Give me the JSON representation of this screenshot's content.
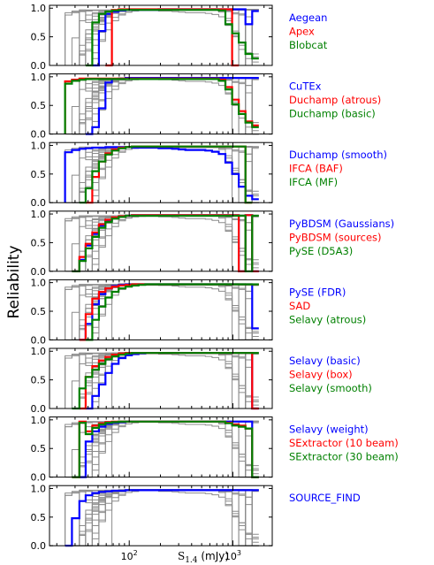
{
  "chart_data": {
    "type": "line",
    "layout": "8 vertically stacked step-line panels sharing a log-scaled x axis",
    "ylabel": "Reliability",
    "xlabel": "S",
    "xlabel_subscript": "1.4",
    "xlabel_unit": " (mJy)",
    "xscale": "log",
    "xlim": [
      17,
      2400
    ],
    "ylim": [
      0.0,
      1.05
    ],
    "yticks": [
      "0.0",
      "0.5",
      "1.0"
    ],
    "xticks": [
      {
        "value": 100,
        "label": "10",
        "exp": "2"
      },
      {
        "value": 1000,
        "label": "10",
        "exp": "3"
      }
    ],
    "background_curves": {
      "color": "#8c8c8c",
      "description": "grey step curves for all other source finders repeated in every panel"
    },
    "bin_edges": [
      20,
      24,
      28,
      33,
      38,
      44,
      51,
      59,
      68,
      79,
      92,
      106,
      123,
      143,
      166,
      192,
      223,
      259,
      300,
      348,
      403,
      468,
      543,
      630,
      731,
      848,
      984,
      1141,
      1324,
      1536,
      1782
    ],
    "panels": [
      {
        "series": [
          {
            "name": "Aegean",
            "color": "#0000ff",
            "values": [
              null,
              null,
              null,
              null,
              null,
              0.0,
              0.6,
              0.9,
              0.94,
              0.96,
              0.97,
              0.97,
              0.97,
              0.97,
              0.97,
              0.98,
              0.98,
              0.98,
              0.98,
              0.98,
              0.98,
              0.98,
              0.98,
              0.98,
              0.98,
              0.98,
              0.98,
              0.98,
              0.72,
              0.95
            ]
          },
          {
            "name": "Apex",
            "color": "#ff0000",
            "values": [
              null,
              null,
              null,
              null,
              null,
              null,
              null,
              0.0,
              0.97,
              0.98,
              0.98,
              0.98,
              0.98,
              0.98,
              0.98,
              0.98,
              0.98,
              0.98,
              0.98,
              0.98,
              0.98,
              0.98,
              0.98,
              0.98,
              0.98,
              0.98,
              0.0,
              null,
              null,
              null
            ]
          },
          {
            "name": "Blobcat",
            "color": "#008000",
            "values": [
              null,
              null,
              null,
              null,
              0.0,
              0.75,
              0.9,
              0.94,
              0.96,
              0.97,
              0.97,
              0.97,
              0.97,
              0.97,
              0.97,
              0.97,
              0.97,
              0.97,
              0.97,
              0.97,
              0.97,
              0.97,
              0.97,
              0.97,
              0.96,
              0.72,
              0.56,
              0.4,
              0.2,
              0.12
            ]
          }
        ]
      },
      {
        "series": [
          {
            "name": "CuTEx",
            "color": "#0000ff",
            "values": [
              null,
              null,
              null,
              null,
              0.0,
              0.12,
              0.45,
              0.9,
              0.96,
              0.97,
              0.98,
              0.98,
              0.98,
              0.98,
              0.98,
              0.98,
              0.98,
              0.98,
              0.98,
              0.98,
              0.98,
              0.98,
              0.98,
              0.98,
              0.98,
              0.98,
              0.98,
              0.98,
              0.98,
              0.98
            ]
          },
          {
            "name": "Duchamp (atrous)",
            "color": "#ff0000",
            "values": [
              null,
              0.92,
              0.95,
              0.97,
              0.97,
              0.97,
              0.97,
              0.97,
              0.97,
              0.97,
              0.97,
              0.97,
              0.97,
              0.97,
              0.97,
              0.97,
              0.97,
              0.97,
              0.97,
              0.97,
              0.97,
              0.97,
              0.97,
              0.97,
              0.95,
              0.82,
              0.6,
              0.4,
              0.22,
              0.15
            ]
          },
          {
            "name": "Duchamp (basic)",
            "color": "#008000",
            "values": [
              null,
              0.88,
              0.93,
              0.95,
              0.96,
              0.96,
              0.96,
              0.96,
              0.96,
              0.96,
              0.96,
              0.96,
              0.96,
              0.96,
              0.96,
              0.96,
              0.96,
              0.96,
              0.96,
              0.96,
              0.96,
              0.96,
              0.96,
              0.96,
              0.93,
              0.78,
              0.52,
              0.35,
              0.2,
              0.12
            ]
          }
        ]
      },
      {
        "series": [
          {
            "name": "Duchamp (smooth)",
            "color": "#0000ff",
            "values": [
              null,
              0.88,
              0.92,
              0.94,
              0.95,
              0.96,
              0.96,
              0.97,
              0.97,
              0.97,
              0.97,
              0.96,
              0.96,
              0.96,
              0.96,
              0.95,
              0.95,
              0.94,
              0.93,
              0.92,
              0.92,
              0.92,
              0.91,
              0.89,
              0.85,
              0.7,
              0.5,
              0.28,
              0.12,
              0.06
            ]
          },
          {
            "name": "IFCA (BAF)",
            "color": "#ff0000",
            "values": [
              null,
              null,
              null,
              null,
              0.0,
              0.45,
              0.72,
              0.86,
              0.93,
              0.96,
              0.97,
              0.98,
              0.98,
              0.98,
              0.98,
              0.98,
              0.98,
              0.98,
              0.98,
              0.98,
              0.98,
              0.98,
              0.98,
              0.98,
              0.98,
              0.98,
              0.98,
              0.98,
              0.0,
              null
            ]
          },
          {
            "name": "IFCA (MF)",
            "color": "#008000",
            "values": [
              null,
              null,
              null,
              0.0,
              0.25,
              0.55,
              0.72,
              0.84,
              0.91,
              0.95,
              0.97,
              0.98,
              0.98,
              0.98,
              0.98,
              0.98,
              0.98,
              0.98,
              0.98,
              0.98,
              0.98,
              0.98,
              0.98,
              0.98,
              0.98,
              0.98,
              0.98,
              0.98,
              0.0,
              null
            ]
          }
        ]
      },
      {
        "series": [
          {
            "name": "PyBDSM (Gaussians)",
            "color": "#0000ff",
            "values": [
              null,
              null,
              0.0,
              0.2,
              0.45,
              0.65,
              0.8,
              0.88,
              0.93,
              0.96,
              0.97,
              0.98,
              0.98,
              0.98,
              0.98,
              0.98,
              0.98,
              0.98,
              0.98,
              0.98,
              0.98,
              0.98,
              0.98,
              0.98,
              0.98,
              0.98,
              0.98,
              0.0,
              0.98,
              0.0
            ]
          },
          {
            "name": "PyBDSM (sources)",
            "color": "#ff0000",
            "values": [
              null,
              null,
              0.0,
              0.25,
              0.48,
              0.68,
              0.82,
              0.9,
              0.94,
              0.96,
              0.97,
              0.98,
              0.98,
              0.98,
              0.98,
              0.98,
              0.98,
              0.98,
              0.98,
              0.98,
              0.98,
              0.98,
              0.98,
              0.98,
              0.98,
              0.98,
              0.98,
              0.0,
              0.98,
              0.0
            ]
          },
          {
            "name": "PySE (D5A3)",
            "color": "#008000",
            "values": [
              null,
              null,
              0.0,
              0.18,
              0.4,
              0.6,
              0.76,
              0.86,
              0.92,
              0.95,
              0.97,
              0.97,
              0.97,
              0.97,
              0.97,
              0.97,
              0.97,
              0.97,
              0.97,
              0.97,
              0.97,
              0.97,
              0.97,
              0.97,
              0.97,
              0.97,
              0.97,
              0.97,
              0.0,
              0.97
            ]
          }
        ]
      },
      {
        "series": [
          {
            "name": "PySE (FDR)",
            "color": "#0000ff",
            "values": [
              null,
              null,
              null,
              0.0,
              0.28,
              0.62,
              0.8,
              0.9,
              0.94,
              0.96,
              0.97,
              0.97,
              0.97,
              0.97,
              0.97,
              0.97,
              0.97,
              0.97,
              0.97,
              0.97,
              0.97,
              0.97,
              0.97,
              0.97,
              0.97,
              0.97,
              0.97,
              0.97,
              0.97,
              0.2
            ]
          },
          {
            "name": "SAD",
            "color": "#ff0000",
            "values": [
              null,
              null,
              null,
              0.0,
              0.45,
              0.72,
              0.84,
              0.9,
              0.93,
              0.95,
              0.96,
              0.97,
              0.97,
              0.97,
              0.97,
              0.97,
              0.97,
              0.97,
              0.97,
              0.97,
              0.97,
              0.97,
              0.97,
              0.97,
              0.97,
              0.97,
              0.97,
              0.97,
              0.97,
              0.97
            ]
          },
          {
            "name": "Selavy (atrous)",
            "color": "#008000",
            "values": [
              null,
              null,
              null,
              null,
              0.0,
              0.35,
              0.58,
              0.74,
              0.84,
              0.9,
              0.93,
              0.95,
              0.96,
              0.97,
              0.97,
              0.97,
              0.97,
              0.97,
              0.97,
              0.97,
              0.97,
              0.97,
              0.97,
              0.97,
              0.97,
              0.97,
              0.97,
              0.97,
              0.97,
              0.97
            ]
          }
        ]
      },
      {
        "series": [
          {
            "name": "Selavy (basic)",
            "color": "#0000ff",
            "values": [
              null,
              null,
              null,
              null,
              0.0,
              0.22,
              0.42,
              0.62,
              0.78,
              0.88,
              0.93,
              0.95,
              0.96,
              0.97,
              0.97,
              0.97,
              0.97,
              0.97,
              0.97,
              0.97,
              0.97,
              0.97,
              0.97,
              0.97,
              0.97,
              0.97,
              0.97,
              0.97,
              0.97,
              0.0
            ]
          },
          {
            "name": "Selavy (box)",
            "color": "#ff0000",
            "values": [
              null,
              null,
              null,
              0.0,
              0.55,
              0.74,
              0.84,
              0.9,
              0.94,
              0.96,
              0.97,
              0.97,
              0.97,
              0.97,
              0.97,
              0.97,
              0.97,
              0.97,
              0.97,
              0.97,
              0.97,
              0.97,
              0.97,
              0.97,
              0.97,
              0.97,
              0.97,
              0.97,
              0.97,
              0.0
            ]
          },
          {
            "name": "Selavy (smooth)",
            "color": "#008000",
            "values": [
              null,
              null,
              0.0,
              0.35,
              0.55,
              0.68,
              0.78,
              0.86,
              0.91,
              0.94,
              0.96,
              0.97,
              0.97,
              0.97,
              0.97,
              0.97,
              0.97,
              0.97,
              0.97,
              0.97,
              0.97,
              0.97,
              0.97,
              0.97,
              0.97,
              0.97,
              0.97,
              0.97,
              0.97,
              0.97
            ]
          }
        ]
      },
      {
        "series": [
          {
            "name": "Selavy (weight)",
            "color": "#0000ff",
            "values": [
              null,
              null,
              null,
              0.0,
              0.62,
              0.8,
              0.88,
              0.93,
              0.95,
              0.96,
              0.97,
              0.97,
              0.97,
              0.97,
              0.97,
              0.97,
              0.97,
              0.97,
              0.97,
              0.97,
              0.97,
              0.97,
              0.97,
              0.97,
              0.97,
              0.97,
              0.97,
              0.97,
              0.97,
              0.0
            ]
          },
          {
            "name": "SExtractor (10 beam)",
            "color": "#ff0000",
            "values": [
              null,
              null,
              0.0,
              0.97,
              0.8,
              0.9,
              0.94,
              0.96,
              0.97,
              0.97,
              0.97,
              0.97,
              0.97,
              0.97,
              0.97,
              0.97,
              0.97,
              0.97,
              0.97,
              0.97,
              0.97,
              0.97,
              0.97,
              0.97,
              0.97,
              0.95,
              0.92,
              0.9,
              0.85,
              0.0
            ]
          },
          {
            "name": "SExtractor (30 beam)",
            "color": "#008000",
            "values": [
              null,
              null,
              0.0,
              0.95,
              0.75,
              0.86,
              0.92,
              0.95,
              0.96,
              0.97,
              0.97,
              0.97,
              0.97,
              0.97,
              0.97,
              0.97,
              0.97,
              0.97,
              0.97,
              0.97,
              0.97,
              0.97,
              0.97,
              0.97,
              0.97,
              0.94,
              0.9,
              0.88,
              0.85,
              0.0
            ]
          }
        ]
      },
      {
        "series": [
          {
            "name": "SOURCE_FIND",
            "color": "#0000ff",
            "values": [
              null,
              0.0,
              0.48,
              0.78,
              0.88,
              0.92,
              0.94,
              0.95,
              0.96,
              0.96,
              0.97,
              0.97,
              0.97,
              0.97,
              0.97,
              0.97,
              0.97,
              0.97,
              0.97,
              0.97,
              0.97,
              0.97,
              0.97,
              0.97,
              0.97,
              0.97,
              0.97,
              0.97,
              0.97,
              0.97
            ]
          }
        ]
      }
    ]
  }
}
